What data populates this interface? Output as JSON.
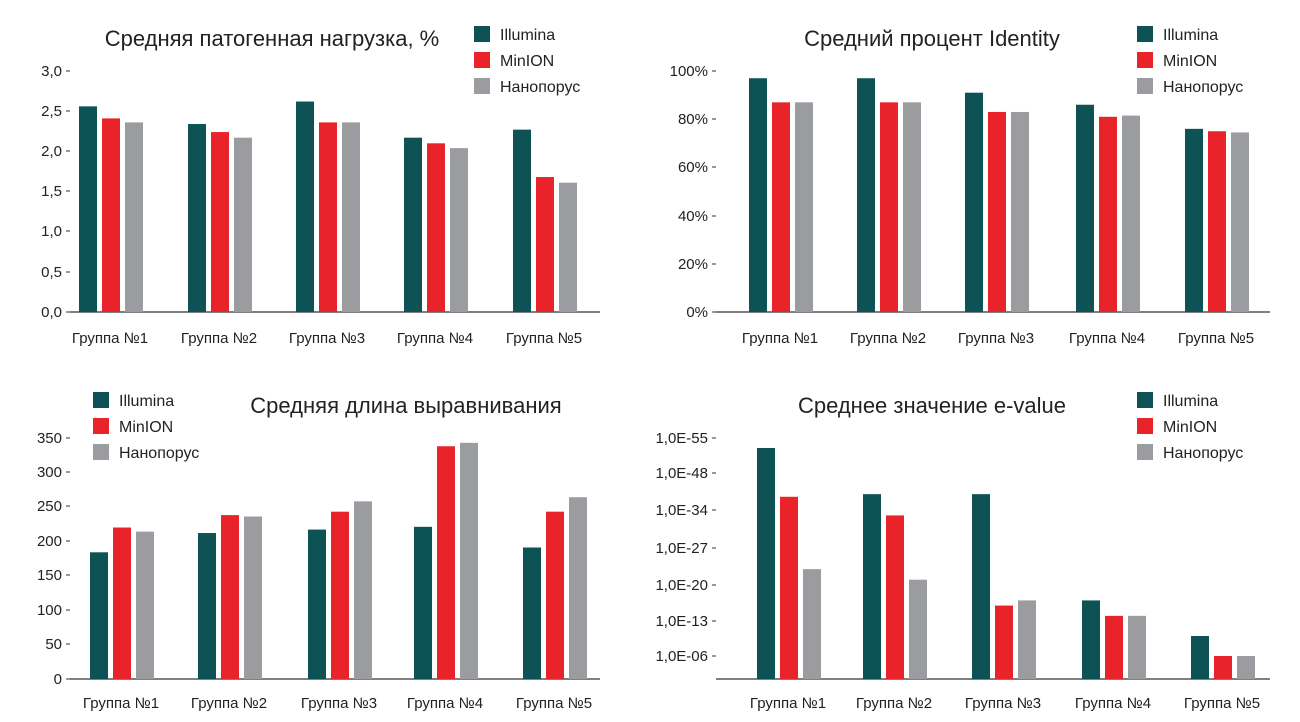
{
  "series_colors": {
    "Illumina": "#0d5355",
    "MinION": "#e8232a",
    "Нанопорус": "#9a9c9f"
  },
  "chart_data": [
    {
      "type": "bar",
      "title": "Средняя патогенная нагрузка, %",
      "categories": [
        "Группа №1",
        "Группа №2",
        "Группа №3",
        "Группа №4",
        "Группа №5"
      ],
      "series": [
        {
          "name": "Illumina",
          "values": [
            2.56,
            2.34,
            2.62,
            2.17,
            2.27
          ]
        },
        {
          "name": "MinION",
          "values": [
            2.41,
            2.24,
            2.36,
            2.1,
            1.68
          ]
        },
        {
          "name": "Нанопорус",
          "values": [
            2.36,
            2.17,
            2.36,
            2.04,
            1.61
          ]
        }
      ],
      "ylim": [
        0,
        3
      ],
      "yticks": [
        "0,0",
        "0,5",
        "1,0",
        "1,5",
        "2,0",
        "2,5",
        "3,0"
      ],
      "legend_position": "top-right"
    },
    {
      "type": "bar",
      "title": "Средний процент Identity",
      "categories": [
        "Группа №1",
        "Группа №2",
        "Группа №3",
        "Группа №4",
        "Группа №5"
      ],
      "series": [
        {
          "name": "Illumina",
          "values": [
            97,
            97,
            91,
            86,
            76
          ]
        },
        {
          "name": "MinION",
          "values": [
            87,
            87,
            83,
            81,
            75
          ]
        },
        {
          "name": "Нанопорус",
          "values": [
            87,
            87,
            83,
            81.5,
            74.5
          ]
        }
      ],
      "ylim": [
        0,
        100
      ],
      "yticks": [
        "0%",
        "20%",
        "40%",
        "60%",
        "80%",
        "100%"
      ],
      "legend_position": "top-right"
    },
    {
      "type": "bar",
      "title": "Средняя длина выравнивания",
      "categories": [
        "Группа №1",
        "Группа №2",
        "Группа №3",
        "Группа №4",
        "Группа №5"
      ],
      "series": [
        {
          "name": "Illumina",
          "values": [
            184,
            212,
            217,
            221,
            191
          ]
        },
        {
          "name": "MinION",
          "values": [
            220,
            238,
            243,
            338,
            243
          ]
        },
        {
          "name": "Нанопорус",
          "values": [
            214,
            236,
            258,
            343,
            264
          ]
        }
      ],
      "ylim": [
        0,
        350
      ],
      "yticks": [
        "0",
        "50",
        "100",
        "150",
        "200",
        "250",
        "300",
        "350"
      ],
      "legend_position": "top-left"
    },
    {
      "type": "bar",
      "title": "Среднее значение e-value",
      "scale": "log",
      "categories": [
        "Группа №1",
        "Группа №2",
        "Группа №3",
        "Группа №4",
        "Группа №5"
      ],
      "series": [
        {
          "name": "Illumina",
          "values": [
            "1,0E-53",
            "1,0E-40",
            "1,0E-40",
            "1,0E-17",
            "1,0E-10"
          ]
        },
        {
          "name": "MinION",
          "values": [
            "1,0E-39",
            "1,0E-33",
            "1,0E-16",
            "1,0E-14",
            "1,0E-06"
          ]
        },
        {
          "name": "Нанопорус",
          "values": [
            "1,0E-23",
            "1,0E-21",
            "1,0E-17",
            "1,0E-14",
            "1,0E-06"
          ]
        }
      ],
      "ylim": [
        "1,0E-06",
        "1,0E-55"
      ],
      "yticks": [
        "1,0E-06",
        "1,0E-13",
        "1,0E-20",
        "1,0E-27",
        "1,0E-34",
        "1,0E-48",
        "1,0E-55"
      ],
      "legend_position": "top-right"
    }
  ]
}
